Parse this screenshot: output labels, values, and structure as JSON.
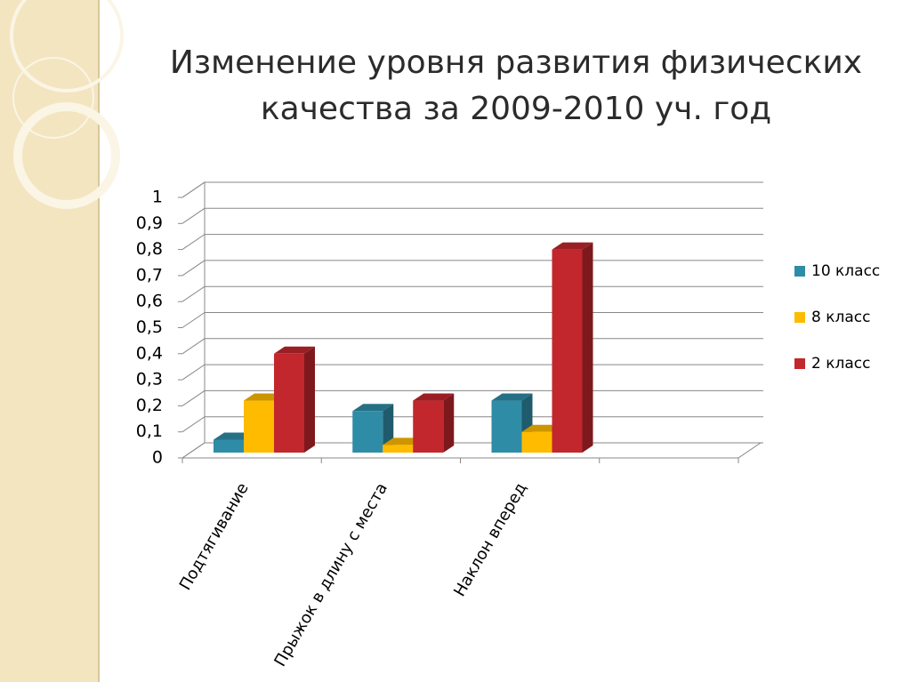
{
  "chart_data": {
    "type": "bar3d",
    "title": [
      "Изменение уровня развития физических",
      "качества за 2009-2010 уч. год"
    ],
    "categories": [
      "Подтягивание",
      "Прыжок в длину с места",
      "Наклон вперед",
      null
    ],
    "series": [
      {
        "name": "10 класс",
        "color": "#2f8ca6",
        "values": [
          0.07,
          0.18,
          0.22,
          null
        ]
      },
      {
        "name": "8 класс",
        "color": "#ffbb00",
        "values": [
          0.22,
          0.05,
          0.1,
          null
        ]
      },
      {
        "name": "2 класс",
        "color": "#c1272d",
        "values": [
          0.4,
          0.22,
          0.8,
          null
        ]
      }
    ],
    "ylim": [
      0,
      1
    ],
    "yticks": [
      0,
      {
        "value": 0.1,
        "label": "0,1"
      },
      {
        "value": 0.2,
        "label": "0,2"
      },
      {
        "value": 0.3,
        "label": "0,3"
      },
      {
        "value": 0.4,
        "label": "0,4"
      },
      {
        "value": 0.5,
        "label": "0,5"
      },
      {
        "value": 0.6,
        "label": "0,6"
      },
      {
        "value": 0.7,
        "label": "0,7"
      },
      {
        "value": 0.8,
        "label": "0,8"
      },
      {
        "value": 0.9,
        "label": "0,9"
      },
      1
    ],
    "grid": true,
    "legend": "right"
  }
}
